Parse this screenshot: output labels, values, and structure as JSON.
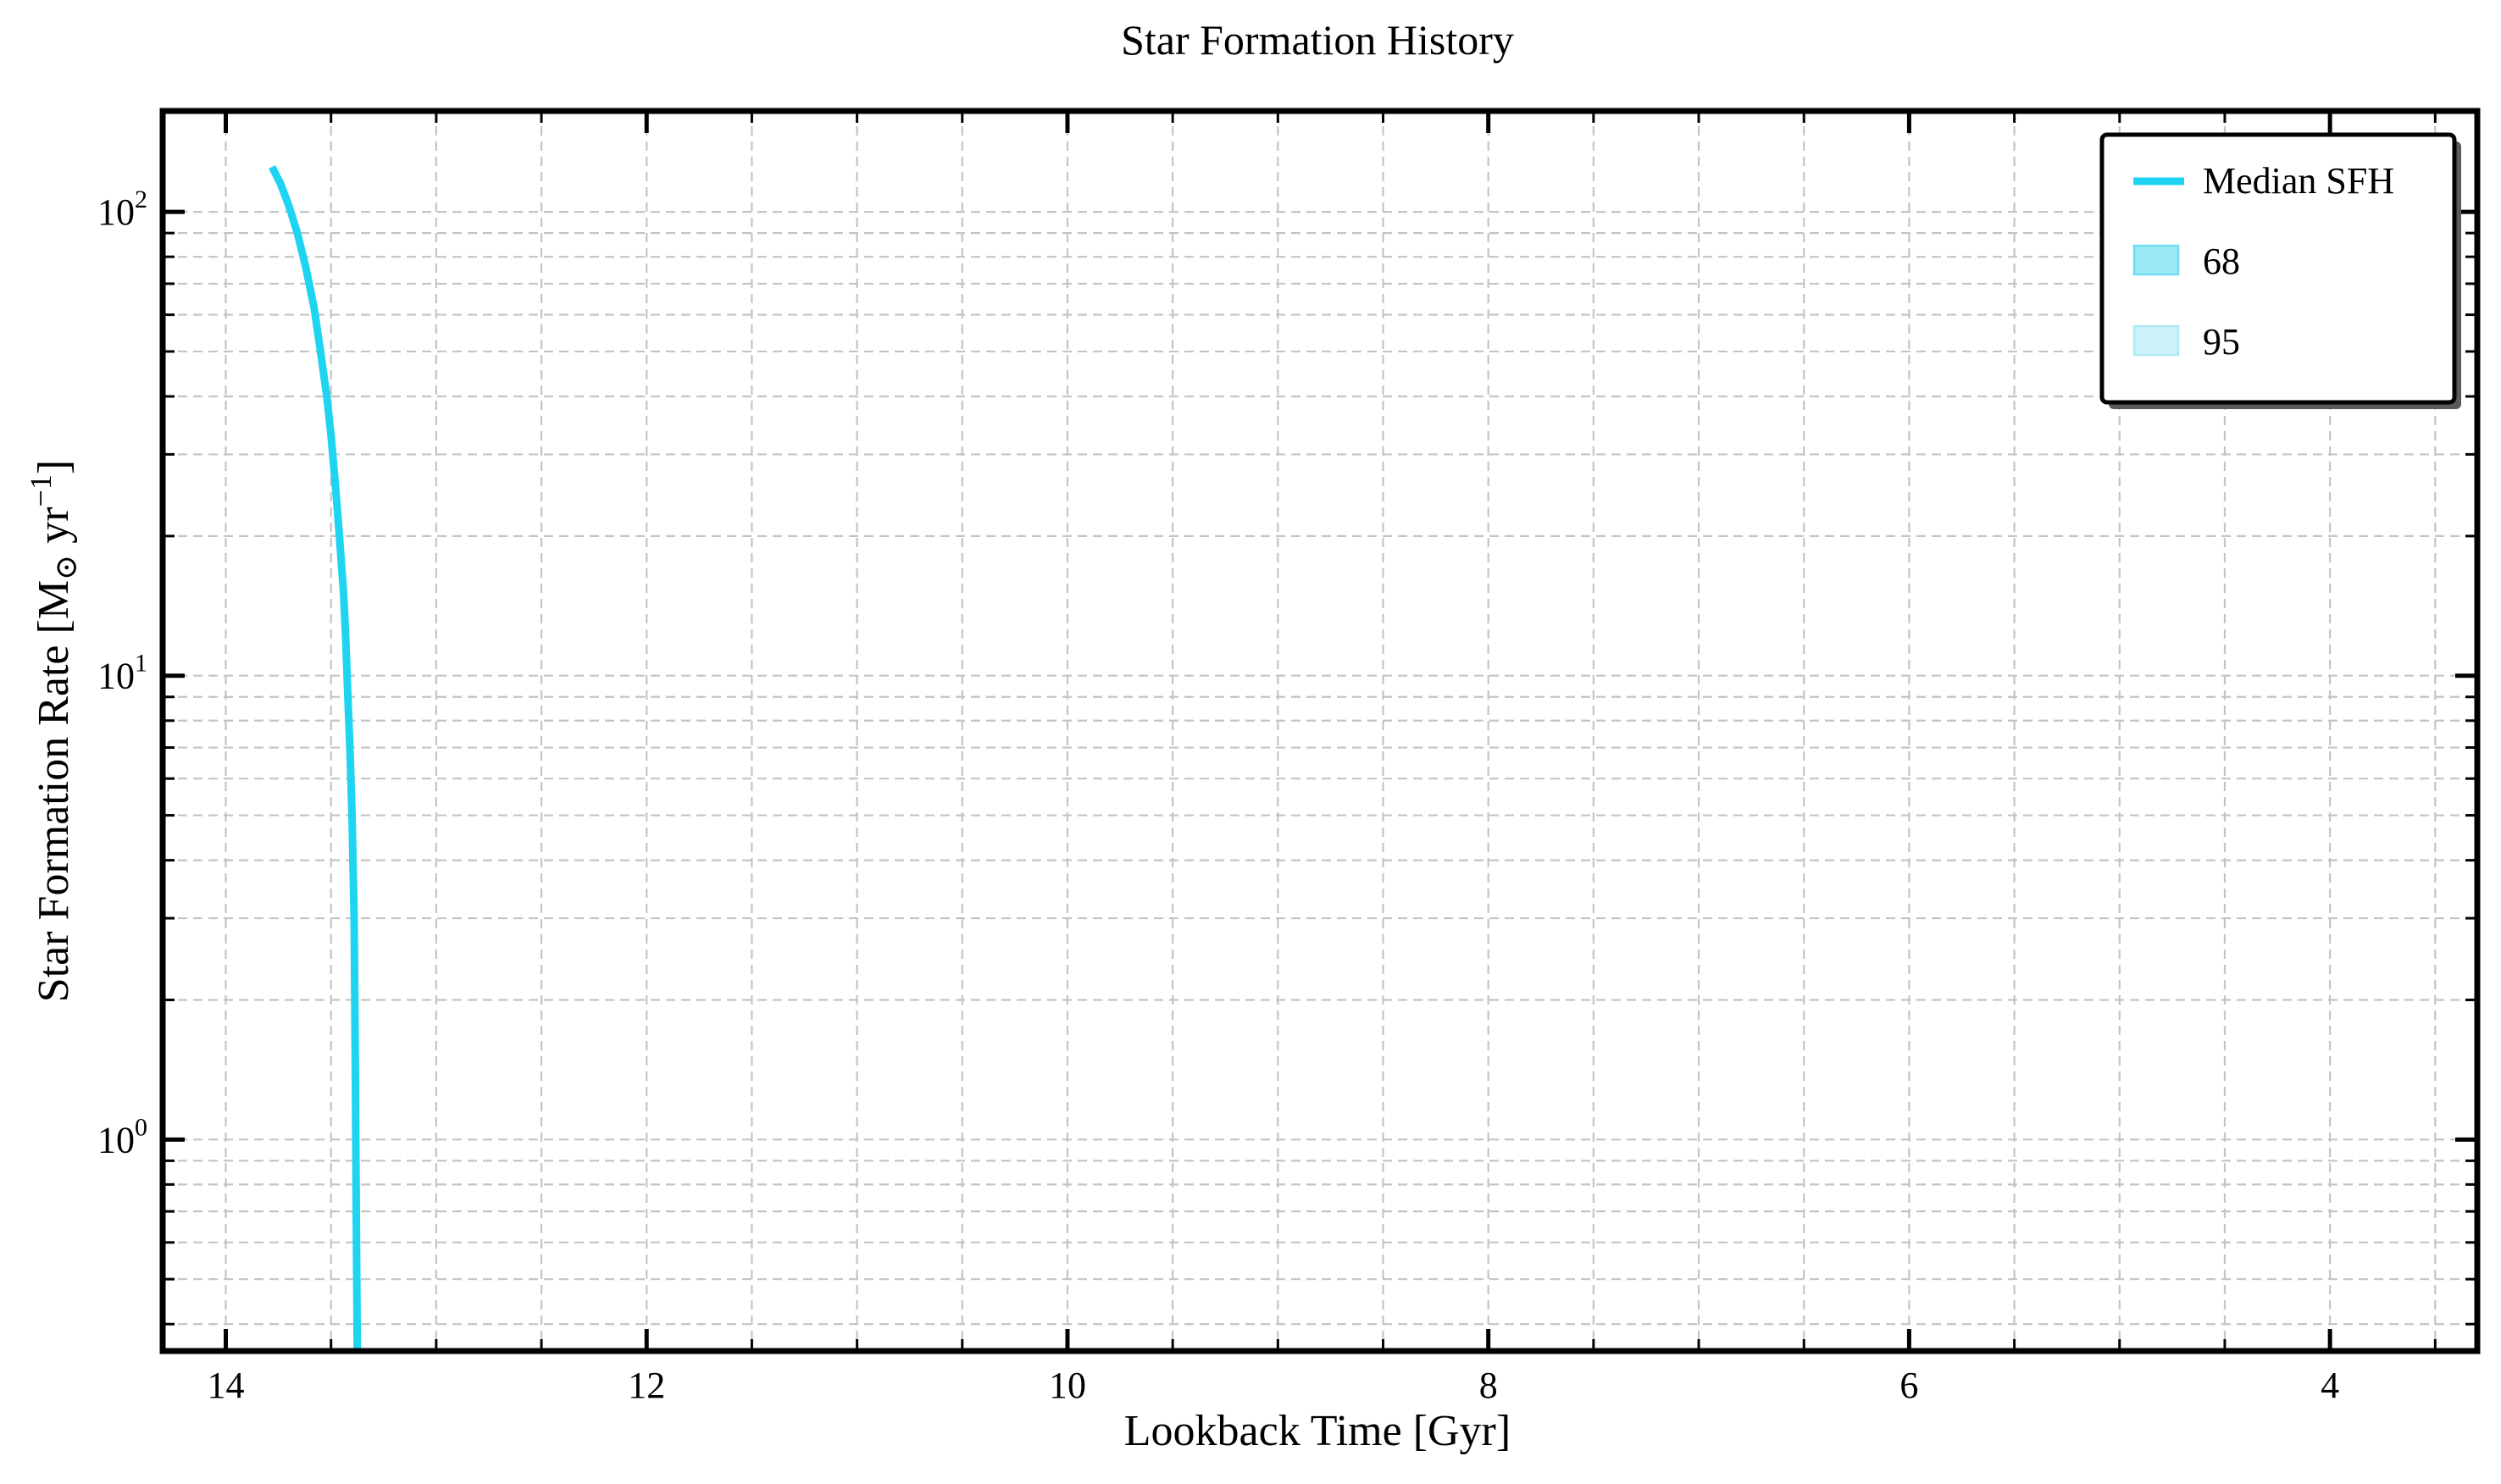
{
  "chart_data": {
    "type": "line",
    "title": "Star Formation History",
    "xlabel": "Lookback Time [Gyr]",
    "ylabel": "Star Formation Rate [M⊙ yr⁻¹]",
    "ylabel_parts": {
      "main": "Star Formation Rate [M",
      "sub": "⊙",
      "mid": " yr",
      "sup": "−1",
      "end": "]"
    },
    "x_scale": "linear",
    "y_scale": "log",
    "x_inverted": true,
    "xlim": [
      14.3,
      3.3
    ],
    "ylim": [
      0.35,
      165
    ],
    "x_ticks": [
      14,
      12,
      10,
      8,
      6,
      4
    ],
    "x_tick_labels": [
      "14",
      "12",
      "10",
      "8",
      "6",
      "4"
    ],
    "x_minor_ticks": [
      13.5,
      13,
      12.5,
      11.5,
      11,
      10.5,
      9.5,
      9,
      8.5,
      7.5,
      7,
      6.5,
      5.5,
      5,
      4.5,
      3.5
    ],
    "y_ticks": [
      1,
      10,
      100
    ],
    "y_tick_labels": [
      {
        "base": "10",
        "exp": "0"
      },
      {
        "base": "10",
        "exp": "1"
      },
      {
        "base": "10",
        "exp": "2"
      }
    ],
    "y_minor_ticks": [
      0.4,
      0.5,
      0.6,
      0.7,
      0.8,
      0.9,
      2,
      3,
      4,
      5,
      6,
      7,
      8,
      9,
      20,
      30,
      40,
      50,
      60,
      70,
      80,
      90
    ],
    "grid": true,
    "legend_position": "top-right",
    "series": [
      {
        "name": "Median SFH",
        "color": "#1fd4f0",
        "x": [
          13.78,
          13.74,
          13.7,
          13.66,
          13.62,
          13.58,
          13.55,
          13.52,
          13.5,
          13.48,
          13.46,
          13.44,
          13.43,
          13.42,
          13.41,
          13.4,
          13.39,
          13.385,
          13.38,
          13.375
        ],
        "y": [
          125,
          115,
          103,
          90,
          76,
          62,
          50,
          40,
          33,
          26,
          20,
          15,
          12,
          9,
          7,
          5,
          3,
          1.5,
          0.7,
          0.35
        ]
      }
    ],
    "legend": [
      {
        "label": "Median SFH",
        "kind": "line",
        "color": "#1fd4f0"
      },
      {
        "label": "68",
        "kind": "patch",
        "color": "#9ae8f6",
        "edge": "#6fdcf0"
      },
      {
        "label": "95",
        "kind": "patch",
        "color": "#cdf3fa",
        "edge": "#aeeaf5"
      }
    ]
  }
}
